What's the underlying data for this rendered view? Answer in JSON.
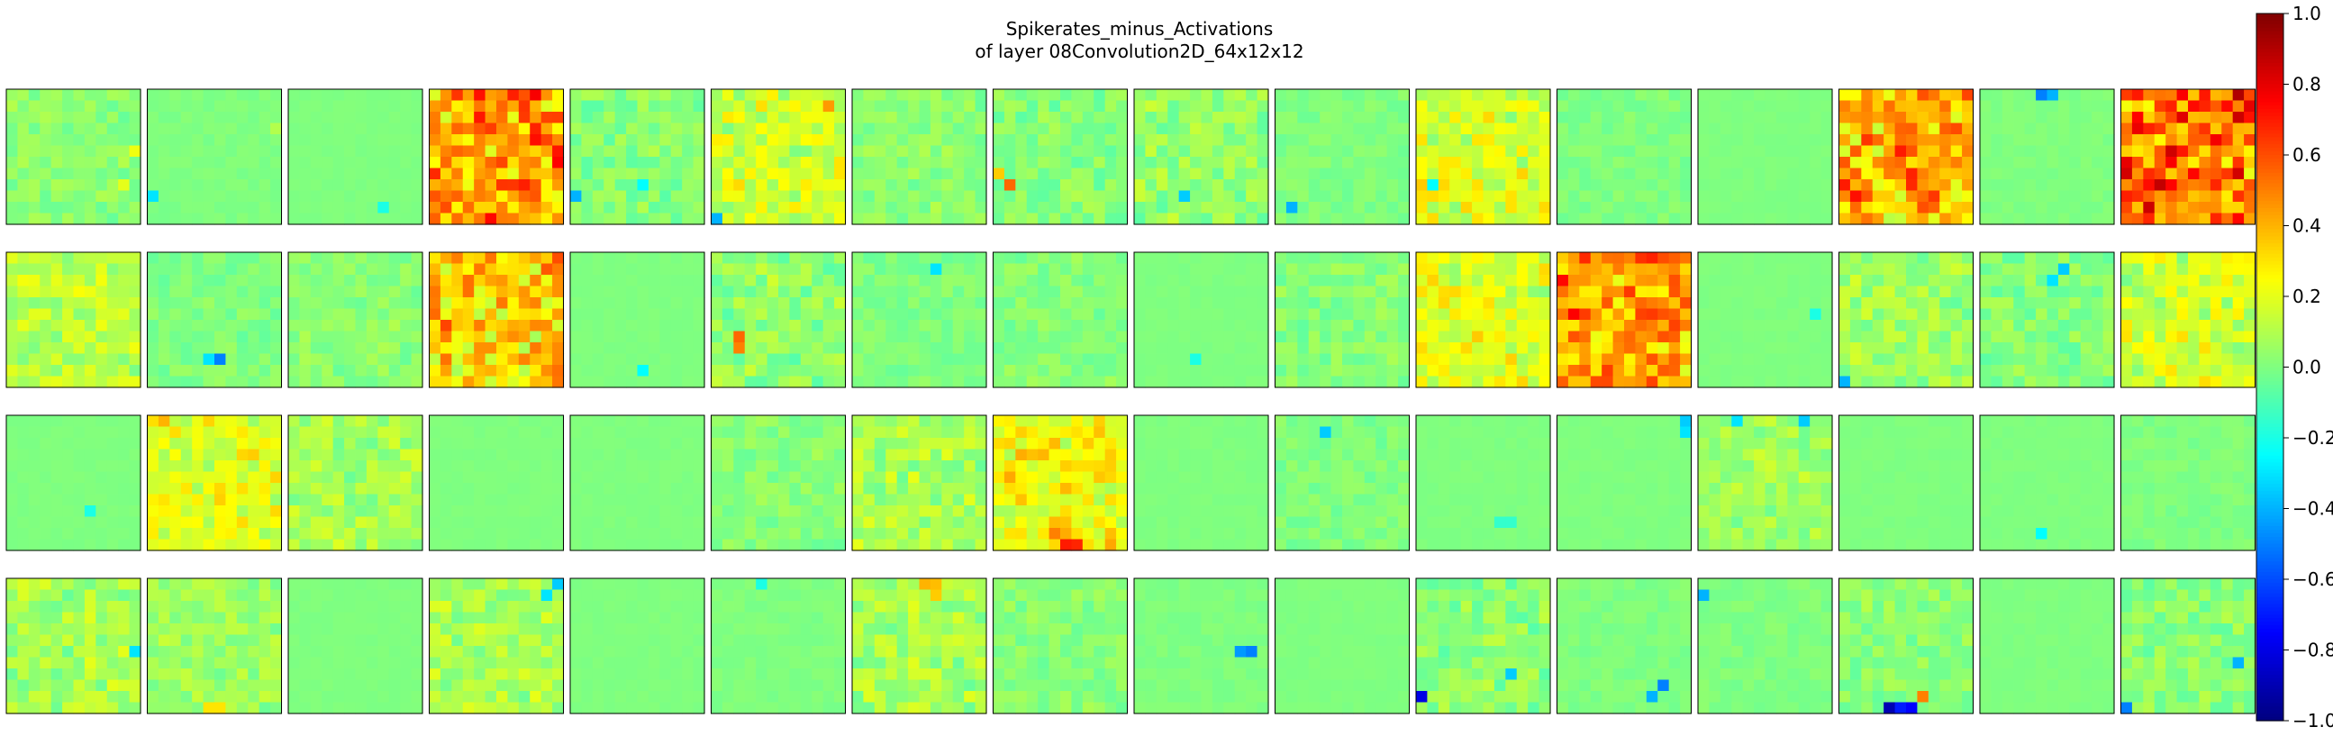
{
  "chart_data": {
    "type": "heatmap",
    "title": "Spikerates_minus_Activations",
    "subtitle": "of layer 08Convolution2D_64x12x12",
    "grid_rows": 4,
    "grid_cols": 16,
    "cell_resolution": [
      12,
      12
    ],
    "value_range": [
      -1.0,
      1.0
    ],
    "colormap": "jet",
    "colorbar_ticks": [
      "1.0",
      "0.8",
      "0.6",
      "0.4",
      "0.2",
      "0.0",
      "−0.2",
      "−0.4",
      "−0.6",
      "−0.8",
      "−1.0"
    ],
    "colorbar_tick_values": [
      1.0,
      0.8,
      0.6,
      0.4,
      0.2,
      0.0,
      -0.2,
      -0.4,
      -0.6,
      -0.8,
      -1.0
    ],
    "maps": [
      {
        "base": 0.03,
        "noise": 0.07,
        "spikes": [
          [
            8,
            10,
            0.2
          ],
          [
            5,
            11,
            0.22
          ]
        ]
      },
      {
        "base": 0.0,
        "noise": 0.02,
        "spikes": [
          [
            9,
            0,
            -0.3
          ],
          [
            3,
            11,
            0.1
          ]
        ]
      },
      {
        "base": 0.0,
        "noise": 0.01,
        "spikes": [
          [
            10,
            8,
            -0.2
          ]
        ]
      },
      {
        "base": 0.45,
        "noise": 0.15,
        "spikes": [
          [
            1,
            8,
            0.65
          ],
          [
            2,
            10,
            0.62
          ]
        ]
      },
      {
        "base": 0.02,
        "noise": 0.09,
        "spikes": [
          [
            9,
            0,
            -0.4
          ],
          [
            8,
            6,
            -0.25
          ]
        ]
      },
      {
        "base": 0.15,
        "noise": 0.12,
        "spikes": [
          [
            1,
            10,
            0.45
          ],
          [
            11,
            0,
            -0.4
          ]
        ]
      },
      {
        "base": 0.03,
        "noise": 0.07,
        "spikes": []
      },
      {
        "base": 0.02,
        "noise": 0.08,
        "spikes": [
          [
            8,
            1,
            0.55
          ],
          [
            7,
            0,
            0.35
          ]
        ]
      },
      {
        "base": 0.05,
        "noise": 0.1,
        "spikes": [
          [
            9,
            4,
            -0.35
          ]
        ]
      },
      {
        "base": 0.0,
        "noise": 0.04,
        "spikes": [
          [
            10,
            1,
            -0.4
          ]
        ]
      },
      {
        "base": 0.18,
        "noise": 0.12,
        "spikes": [
          [
            8,
            1,
            -0.25
          ]
        ]
      },
      {
        "base": 0.0,
        "noise": 0.04,
        "spikes": []
      },
      {
        "base": 0.0,
        "noise": 0.01,
        "spikes": []
      },
      {
        "base": 0.4,
        "noise": 0.16,
        "spikes": [
          [
            8,
            0,
            0.7
          ],
          [
            9,
            1,
            0.72
          ]
        ]
      },
      {
        "base": 0.0,
        "noise": 0.02,
        "spikes": [
          [
            0,
            5,
            -0.5
          ],
          [
            0,
            6,
            -0.4
          ]
        ]
      },
      {
        "base": 0.55,
        "noise": 0.15,
        "spikes": [
          [
            2,
            10,
            0.85
          ],
          [
            1,
            11,
            0.8
          ]
        ]
      },
      {
        "base": 0.12,
        "noise": 0.1,
        "spikes": []
      },
      {
        "base": 0.0,
        "noise": 0.06,
        "spikes": [
          [
            9,
            6,
            -0.5
          ],
          [
            9,
            5,
            -0.3
          ]
        ]
      },
      {
        "base": 0.03,
        "noise": 0.06,
        "spikes": []
      },
      {
        "base": 0.35,
        "noise": 0.15,
        "spikes": [
          [
            0,
            11,
            0.6
          ],
          [
            1,
            10,
            0.58
          ]
        ]
      },
      {
        "base": 0.0,
        "noise": 0.01,
        "spikes": [
          [
            10,
            6,
            -0.25
          ]
        ]
      },
      {
        "base": 0.05,
        "noise": 0.1,
        "spikes": [
          [
            7,
            2,
            0.55
          ],
          [
            8,
            2,
            0.5
          ]
        ]
      },
      {
        "base": 0.0,
        "noise": 0.05,
        "spikes": [
          [
            1,
            7,
            -0.3
          ]
        ]
      },
      {
        "base": 0.02,
        "noise": 0.06,
        "spikes": []
      },
      {
        "base": 0.0,
        "noise": 0.01,
        "spikes": [
          [
            9,
            5,
            -0.2
          ]
        ]
      },
      {
        "base": 0.02,
        "noise": 0.07,
        "spikes": []
      },
      {
        "base": 0.2,
        "noise": 0.12,
        "spikes": []
      },
      {
        "base": 0.45,
        "noise": 0.14,
        "spikes": [
          [
            0,
            9,
            0.6
          ],
          [
            11,
            8,
            0.62
          ]
        ]
      },
      {
        "base": 0.0,
        "noise": 0.01,
        "spikes": [
          [
            5,
            10,
            -0.2
          ]
        ]
      },
      {
        "base": 0.06,
        "noise": 0.1,
        "spikes": [
          [
            11,
            0,
            -0.4
          ]
        ]
      },
      {
        "base": 0.02,
        "noise": 0.08,
        "spikes": [
          [
            1,
            7,
            -0.35
          ],
          [
            2,
            6,
            -0.3
          ]
        ]
      },
      {
        "base": 0.15,
        "noise": 0.12,
        "spikes": []
      },
      {
        "base": 0.0,
        "noise": 0.01,
        "spikes": [
          [
            8,
            7,
            -0.2
          ]
        ]
      },
      {
        "base": 0.2,
        "noise": 0.1,
        "spikes": [
          [
            0,
            1,
            0.4
          ]
        ]
      },
      {
        "base": 0.08,
        "noise": 0.1,
        "spikes": []
      },
      {
        "base": 0.0,
        "noise": 0.01,
        "spikes": []
      },
      {
        "base": 0.0,
        "noise": 0.01,
        "spikes": []
      },
      {
        "base": 0.02,
        "noise": 0.06,
        "spikes": []
      },
      {
        "base": 0.08,
        "noise": 0.1,
        "spikes": []
      },
      {
        "base": 0.25,
        "noise": 0.1,
        "spikes": [
          [
            11,
            6,
            0.7
          ],
          [
            11,
            7,
            0.68
          ],
          [
            10,
            5,
            0.5
          ]
        ]
      },
      {
        "base": 0.0,
        "noise": 0.01,
        "spikes": []
      },
      {
        "base": 0.0,
        "noise": 0.05,
        "spikes": [
          [
            1,
            4,
            -0.35
          ]
        ]
      },
      {
        "base": 0.0,
        "noise": 0.01,
        "spikes": [
          [
            9,
            7,
            -0.15
          ],
          [
            9,
            8,
            -0.15
          ]
        ]
      },
      {
        "base": 0.0,
        "noise": 0.01,
        "spikes": [
          [
            0,
            11,
            -0.35
          ],
          [
            1,
            11,
            -0.3
          ]
        ]
      },
      {
        "base": 0.06,
        "noise": 0.08,
        "spikes": [
          [
            0,
            9,
            -0.35
          ],
          [
            0,
            3,
            -0.3
          ]
        ]
      },
      {
        "base": 0.0,
        "noise": 0.01,
        "spikes": []
      },
      {
        "base": 0.0,
        "noise": 0.01,
        "spikes": [
          [
            10,
            5,
            -0.25
          ]
        ]
      },
      {
        "base": 0.0,
        "noise": 0.03,
        "spikes": []
      },
      {
        "base": 0.08,
        "noise": 0.1,
        "spikes": [
          [
            6,
            11,
            -0.3
          ]
        ]
      },
      {
        "base": 0.06,
        "noise": 0.08,
        "spikes": [
          [
            11,
            5,
            0.3
          ],
          [
            11,
            6,
            0.3
          ]
        ]
      },
      {
        "base": 0.0,
        "noise": 0.01,
        "spikes": []
      },
      {
        "base": 0.08,
        "noise": 0.1,
        "spikes": [
          [
            0,
            11,
            -0.35
          ],
          [
            1,
            10,
            -0.3
          ]
        ]
      },
      {
        "base": 0.0,
        "noise": 0.01,
        "spikes": []
      },
      {
        "base": 0.0,
        "noise": 0.02,
        "spikes": [
          [
            0,
            4,
            -0.2
          ]
        ]
      },
      {
        "base": 0.08,
        "noise": 0.1,
        "spikes": [
          [
            0,
            6,
            0.4
          ],
          [
            0,
            7,
            0.38
          ],
          [
            1,
            7,
            0.35
          ]
        ]
      },
      {
        "base": 0.03,
        "noise": 0.06,
        "spikes": []
      },
      {
        "base": 0.0,
        "noise": 0.02,
        "spikes": [
          [
            6,
            9,
            -0.45
          ],
          [
            6,
            10,
            -0.5
          ]
        ]
      },
      {
        "base": 0.0,
        "noise": 0.01,
        "spikes": []
      },
      {
        "base": 0.04,
        "noise": 0.1,
        "spikes": [
          [
            10,
            0,
            -0.8
          ],
          [
            8,
            8,
            -0.35
          ]
        ]
      },
      {
        "base": 0.0,
        "noise": 0.03,
        "spikes": [
          [
            9,
            9,
            -0.5
          ],
          [
            10,
            8,
            -0.4
          ]
        ]
      },
      {
        "base": 0.0,
        "noise": 0.03,
        "spikes": [
          [
            1,
            0,
            -0.4
          ]
        ]
      },
      {
        "base": 0.03,
        "noise": 0.07,
        "spikes": [
          [
            11,
            4,
            -0.9
          ],
          [
            11,
            5,
            -0.7
          ],
          [
            11,
            6,
            -0.75
          ],
          [
            10,
            7,
            0.5
          ]
        ]
      },
      {
        "base": 0.0,
        "noise": 0.01,
        "spikes": []
      },
      {
        "base": 0.03,
        "noise": 0.08,
        "spikes": [
          [
            7,
            10,
            -0.4
          ],
          [
            11,
            0,
            -0.5
          ]
        ]
      }
    ]
  }
}
